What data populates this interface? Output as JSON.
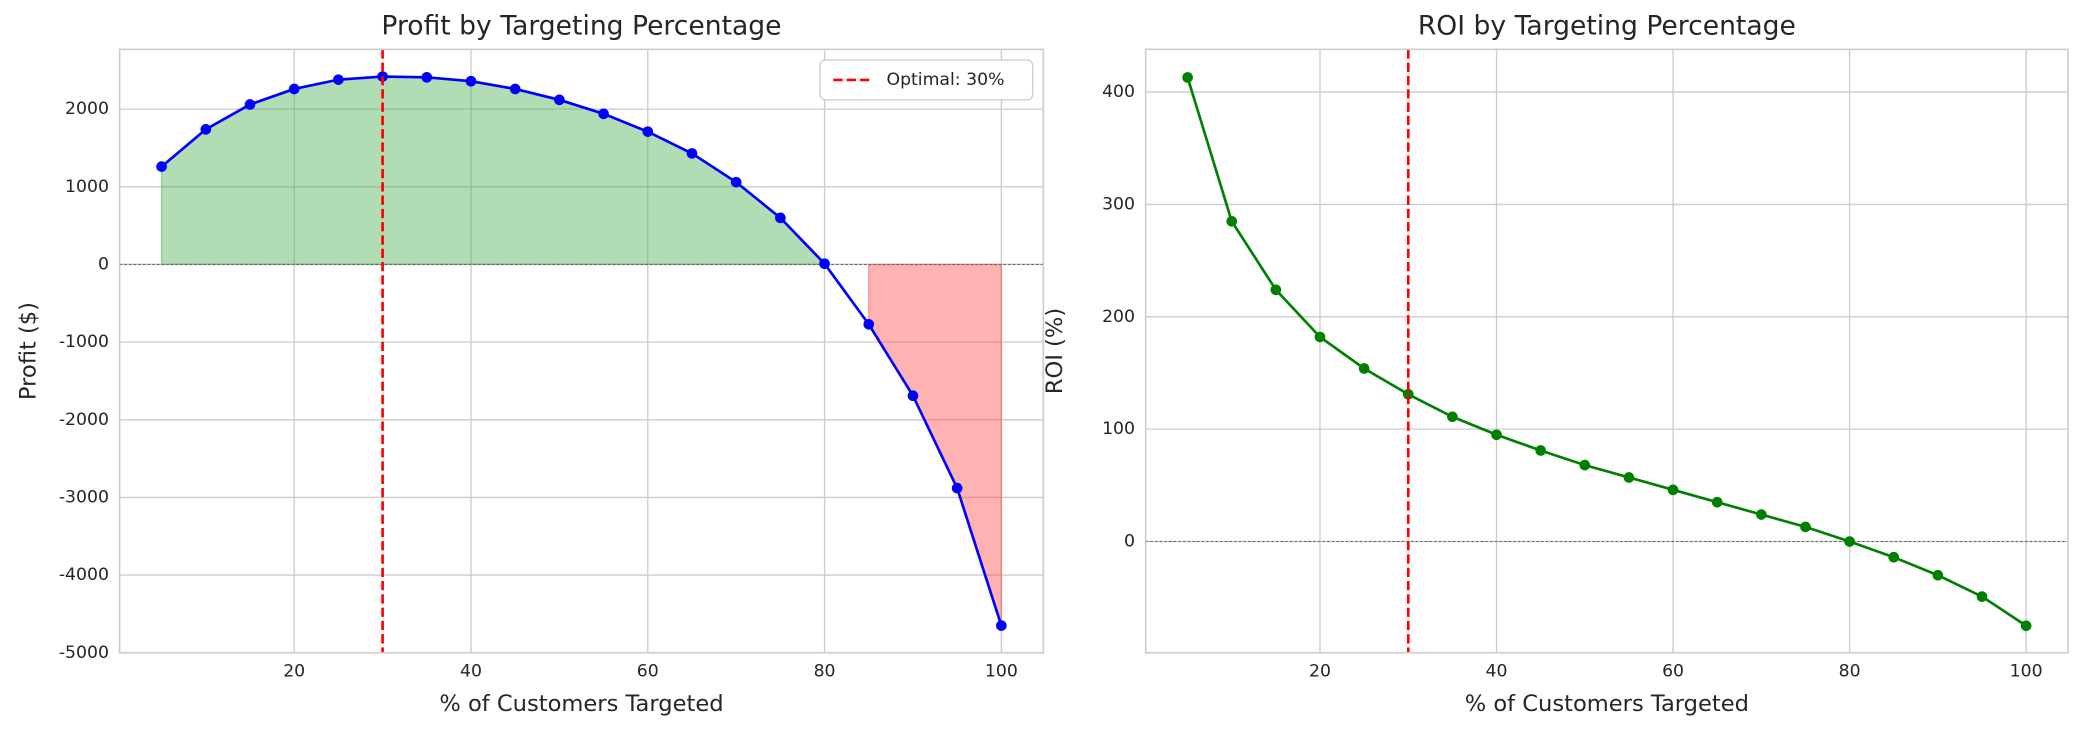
{
  "chart_data": [
    {
      "type": "line",
      "title": "Profit by Targeting Percentage",
      "xlabel": "% of Customers Targeted",
      "ylabel": "Profit ($)",
      "x": [
        5,
        10,
        15,
        20,
        25,
        30,
        35,
        40,
        45,
        50,
        55,
        60,
        65,
        70,
        75,
        80,
        85,
        90,
        95,
        100
      ],
      "values": [
        1260,
        1740,
        2060,
        2260,
        2380,
        2420,
        2410,
        2360,
        2260,
        2120,
        1940,
        1710,
        1430,
        1060,
        600,
        10,
        -770,
        -1690,
        -2880,
        -4650
      ],
      "color": "#0000ff",
      "fill_between": {
        "positive_color": "#4caf50",
        "negative_color": "#ff4d4d"
      },
      "hline": 0,
      "vline": {
        "x": 30,
        "label": "Optimal: 30%",
        "color": "#ff0000"
      },
      "legend": "upper right",
      "xlim": [
        0.25,
        104.75
      ],
      "xticks": [
        20,
        40,
        60,
        80,
        100
      ],
      "ylim": [
        -5000,
        2770
      ],
      "yticks": [
        -5000,
        -4000,
        -3000,
        -2000,
        -1000,
        0,
        1000,
        2000
      ],
      "grid": true
    },
    {
      "type": "line",
      "title": "ROI by Targeting Percentage",
      "xlabel": "% of Customers Targeted",
      "ylabel": "ROI (%)",
      "x": [
        5,
        10,
        15,
        20,
        25,
        30,
        35,
        40,
        45,
        50,
        55,
        60,
        65,
        70,
        75,
        80,
        85,
        90,
        95,
        100
      ],
      "values": [
        413,
        285,
        224,
        182,
        154,
        131,
        111,
        95,
        81,
        68,
        57,
        46,
        35,
        24,
        13,
        0,
        -14,
        -30,
        -49,
        -75
      ],
      "color": "#008000",
      "hline": 0,
      "vline": {
        "x": 30,
        "color": "#ff0000"
      },
      "xlim": [
        0.25,
        104.75
      ],
      "xticks": [
        20,
        40,
        60,
        80,
        100
      ],
      "ylim": [
        -99,
        438
      ],
      "yticks": [
        0,
        100,
        200,
        300,
        400
      ],
      "grid": true
    }
  ]
}
